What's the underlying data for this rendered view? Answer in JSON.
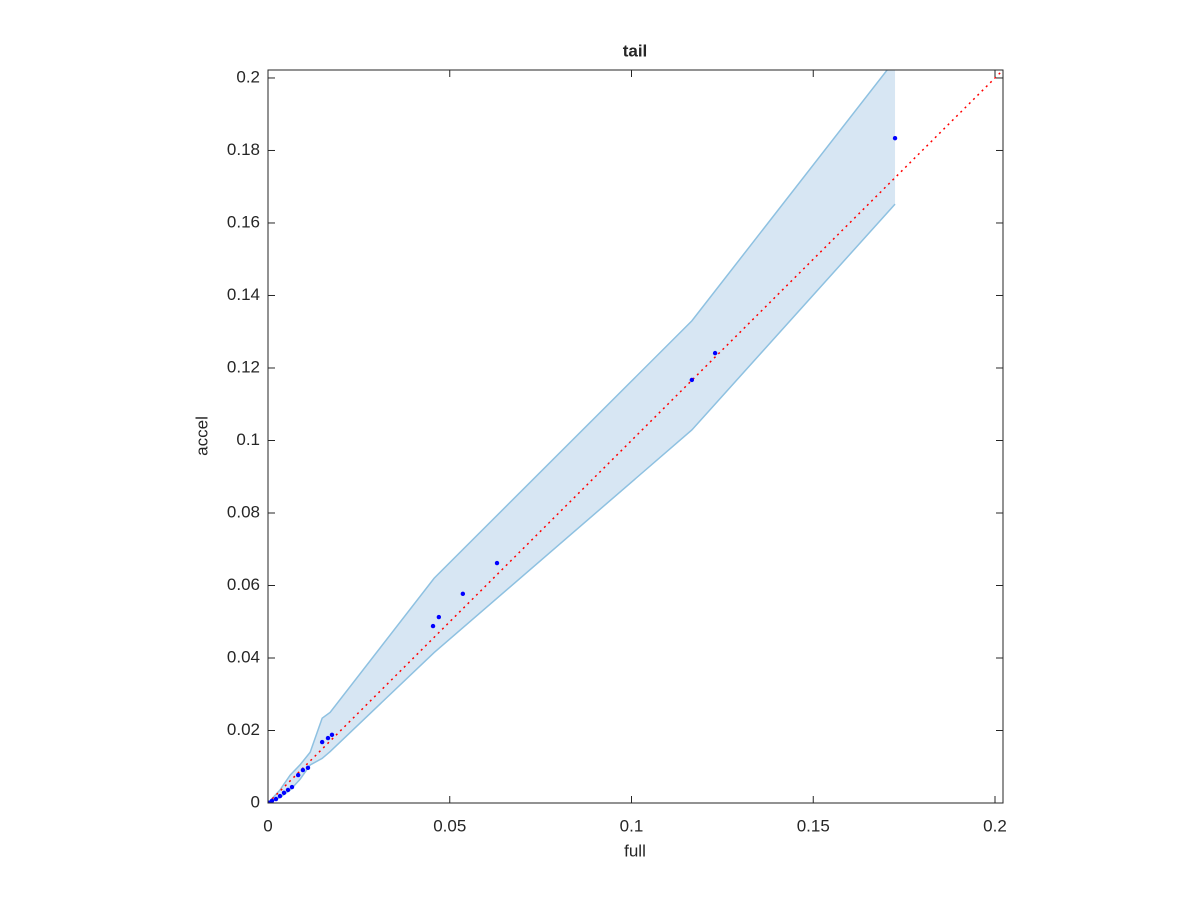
{
  "chart_data": {
    "type": "scatter",
    "title": "tail",
    "x_label": "full",
    "y_label": "accel",
    "xlim": [
      0,
      0.2022
    ],
    "ylim": [
      0,
      0.2022
    ],
    "xticks": [
      0,
      0.05,
      0.1,
      0.15,
      0.2
    ],
    "yticks": [
      0,
      0.02,
      0.04,
      0.06,
      0.08,
      0.1,
      0.12,
      0.14,
      0.16,
      0.18,
      0.2
    ],
    "band": {
      "color": "#d7e6f3",
      "edge_color": "#8ec1e1",
      "x": [
        0,
        0.0033,
        0.0061,
        0.0088,
        0.0116,
        0.0149,
        0.0171,
        0.0457,
        0.1166,
        0.1725
      ],
      "upper": [
        0,
        0.0036,
        0.0077,
        0.0105,
        0.014,
        0.0234,
        0.025,
        0.062,
        0.133,
        0.205
      ],
      "lower": [
        0,
        0.0015,
        0.0036,
        0.0065,
        0.0105,
        0.0123,
        0.0142,
        0.0415,
        0.1029,
        0.1652
      ]
    },
    "reference_line": {
      "color": "#ff0000",
      "x": [
        0,
        0.2022
      ],
      "values": [
        0,
        0.2022
      ]
    },
    "points": {
      "color": "#0000ff",
      "x": [
        0.1725,
        0.123,
        0.1166,
        0.063,
        0.0536,
        0.047,
        0.0454,
        0.0176,
        0.0165,
        0.0149,
        0.011,
        0.0096,
        0.0083,
        0.0066,
        0.0055,
        0.0044,
        0.0033,
        0.0022,
        0.0011,
        0.0003
      ],
      "values": [
        0.1834,
        0.1241,
        0.1167,
        0.0662,
        0.0577,
        0.0513,
        0.0488,
        0.0188,
        0.0179,
        0.0168,
        0.0097,
        0.0091,
        0.0077,
        0.0044,
        0.0036,
        0.0028,
        0.0019,
        0.0011,
        0.0006,
        0.0001
      ]
    }
  }
}
